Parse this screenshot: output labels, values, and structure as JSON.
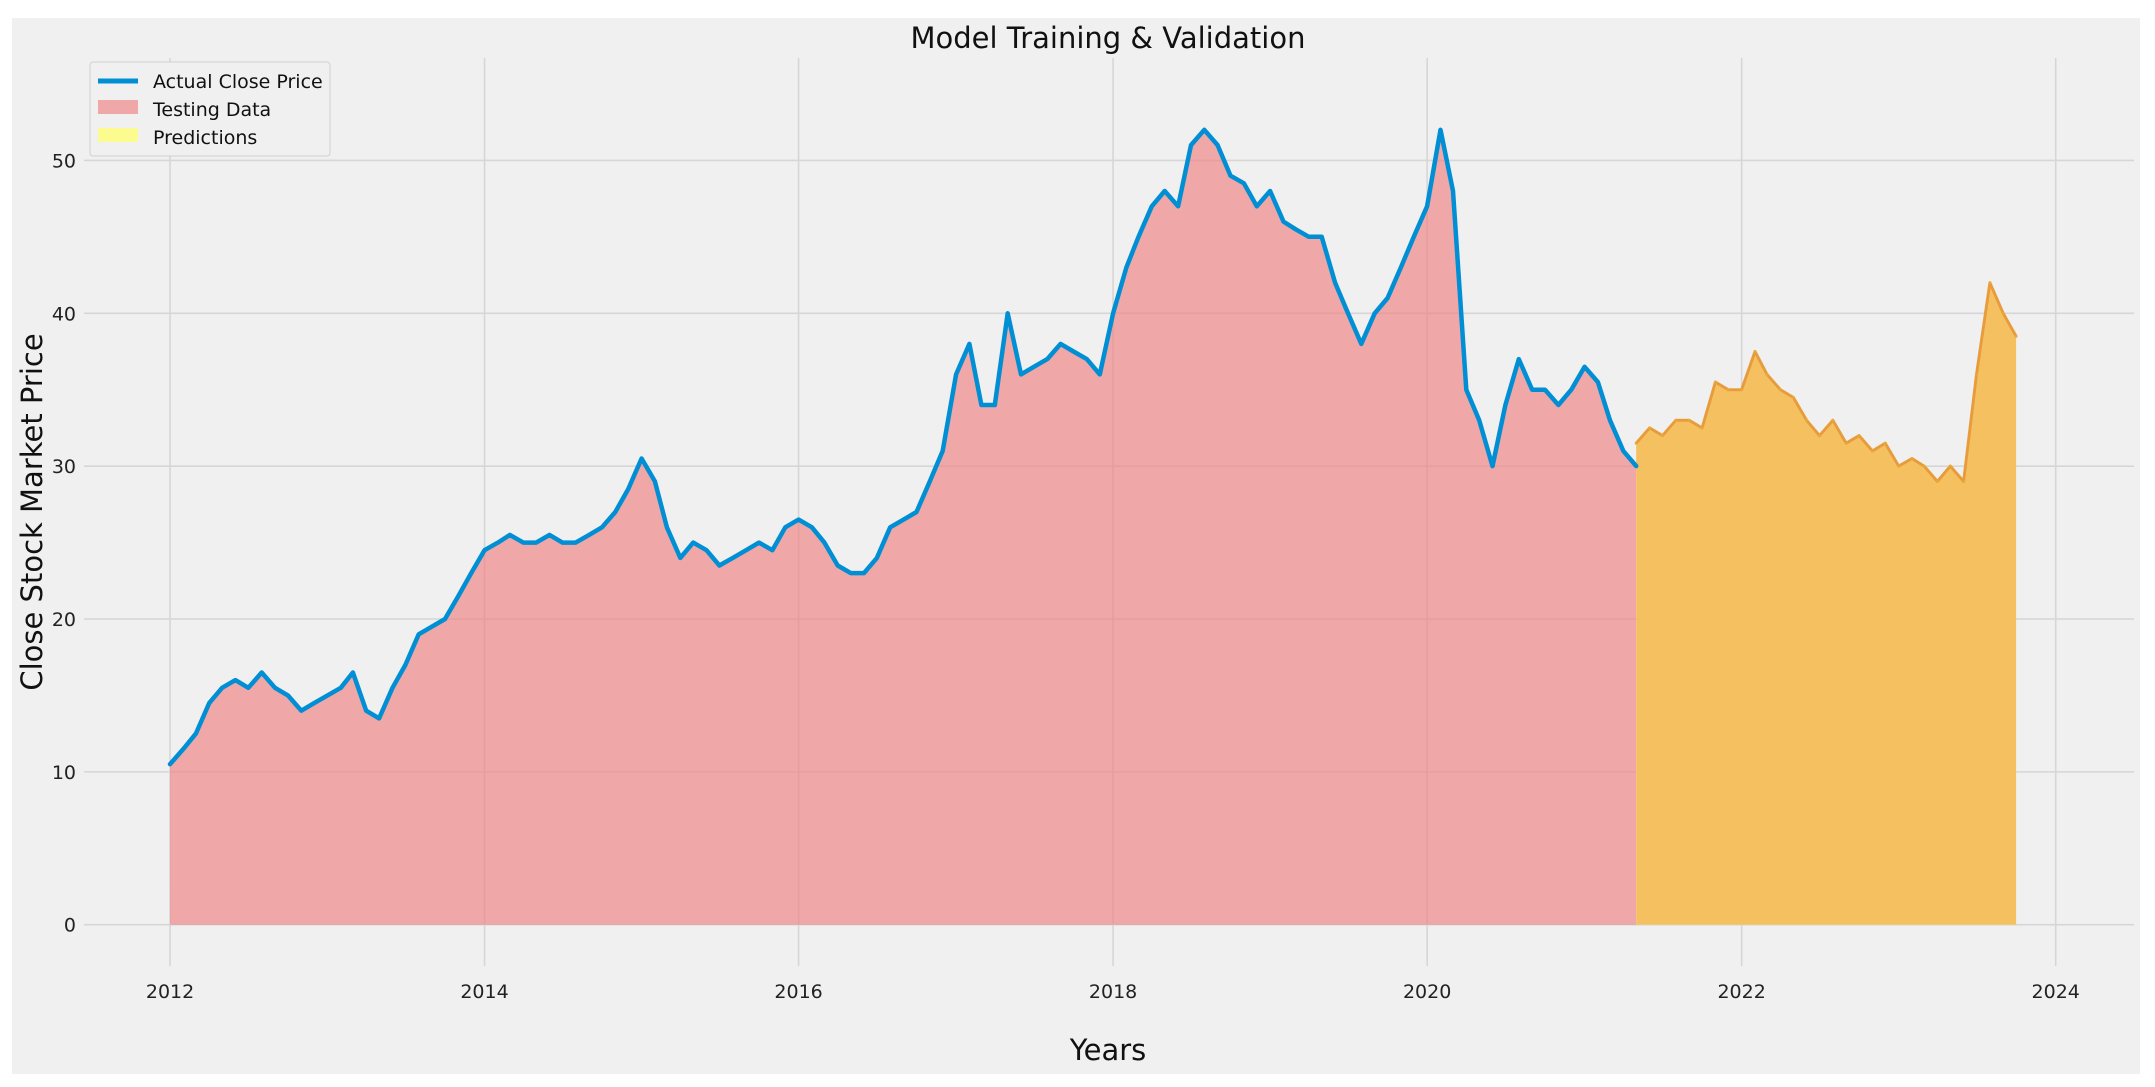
{
  "chart_data": {
    "type": "area",
    "title": "Model Training & Validation",
    "xlabel": "Years",
    "ylabel": "Close Stock Market Price",
    "xlim": [
      "2011-06-15",
      "2024-07-01"
    ],
    "ylim": [
      -2.7,
      56.7
    ],
    "x_ticks": [
      "2012",
      "2014",
      "2016",
      "2018",
      "2020",
      "2022",
      "2024"
    ],
    "y_ticks": [
      0,
      10,
      20,
      30,
      40,
      50
    ],
    "grid": true,
    "legend": {
      "placement": "top-left",
      "entries": [
        "Actual Close Price",
        "Testing Data",
        "Predictions"
      ]
    },
    "colors": {
      "background": "#f0f0f0",
      "grid": "#d6d6d6",
      "actual": "#008fd5",
      "testing": "#f08080",
      "testing_line": "#e05050",
      "predictions": "#ffff66",
      "prediction_overlay": "#f5c060"
    },
    "series": [
      {
        "name": "Actual Close Price",
        "role": "line",
        "x": [
          "2012-01-01",
          "2012-02-01",
          "2012-03-01",
          "2012-04-01",
          "2012-05-01",
          "2012-06-01",
          "2012-07-01",
          "2012-08-01",
          "2012-09-01",
          "2012-10-01",
          "2012-11-01",
          "2012-12-01",
          "2013-01-01",
          "2013-02-01",
          "2013-03-01",
          "2013-04-01",
          "2013-05-01",
          "2013-06-01",
          "2013-07-01",
          "2013-08-01",
          "2013-09-01",
          "2013-10-01",
          "2013-11-01",
          "2013-12-01",
          "2014-01-01",
          "2014-02-01",
          "2014-03-01",
          "2014-04-01",
          "2014-05-01",
          "2014-06-01",
          "2014-07-01",
          "2014-08-01",
          "2014-09-01",
          "2014-10-01",
          "2014-11-01",
          "2014-12-01",
          "2015-01-01",
          "2015-02-01",
          "2015-03-01",
          "2015-04-01",
          "2015-05-01",
          "2015-06-01",
          "2015-07-01",
          "2015-08-01",
          "2015-09-01",
          "2015-10-01",
          "2015-11-01",
          "2015-12-01",
          "2016-01-01",
          "2016-02-01",
          "2016-03-01",
          "2016-04-01",
          "2016-05-01",
          "2016-06-01",
          "2016-07-01",
          "2016-08-01",
          "2016-09-01",
          "2016-10-01",
          "2016-11-01",
          "2016-12-01",
          "2017-01-01",
          "2017-02-01",
          "2017-03-01",
          "2017-04-01",
          "2017-05-01",
          "2017-06-01",
          "2017-07-01",
          "2017-08-01",
          "2017-09-01",
          "2017-10-01",
          "2017-11-01",
          "2017-12-01",
          "2018-01-01",
          "2018-02-01",
          "2018-03-01",
          "2018-04-01",
          "2018-05-01",
          "2018-06-01",
          "2018-07-01",
          "2018-08-01",
          "2018-09-01",
          "2018-10-01",
          "2018-11-01",
          "2018-12-01",
          "2019-01-01",
          "2019-02-01",
          "2019-03-01",
          "2019-04-01",
          "2019-05-01",
          "2019-06-01",
          "2019-07-01",
          "2019-08-01",
          "2019-09-01",
          "2019-10-01",
          "2019-11-01",
          "2019-12-01",
          "2020-01-01",
          "2020-02-01",
          "2020-03-01",
          "2020-04-01",
          "2020-05-01",
          "2020-06-01",
          "2020-07-01",
          "2020-08-01",
          "2020-09-01",
          "2020-10-01",
          "2020-11-01",
          "2020-12-01",
          "2021-01-01",
          "2021-02-01",
          "2021-03-01",
          "2021-04-01",
          "2021-05-01"
        ],
        "y": [
          10.5,
          11.5,
          12.5,
          14.5,
          15.5,
          16.0,
          15.5,
          16.5,
          15.5,
          15.0,
          14.0,
          14.5,
          15.0,
          15.5,
          16.5,
          14.0,
          13.5,
          15.5,
          17.0,
          19.0,
          19.5,
          20.0,
          21.5,
          23.0,
          24.5,
          25.0,
          25.5,
          25.0,
          25.0,
          25.5,
          25.0,
          25.0,
          25.5,
          26.0,
          27.0,
          28.5,
          30.5,
          29.0,
          26.0,
          24.0,
          25.0,
          24.5,
          23.5,
          24.0,
          24.5,
          25.0,
          24.5,
          26.0,
          26.5,
          26.0,
          25.0,
          23.5,
          23.0,
          23.0,
          24.0,
          26.0,
          26.5,
          27.0,
          29.0,
          31.0,
          36.0,
          38.0,
          34.0,
          34.0,
          40.0,
          36.0,
          36.5,
          37.0,
          38.0,
          37.5,
          37.0,
          36.0,
          40.0,
          43.0,
          45.0,
          47.0,
          48.0,
          47.0,
          51.0,
          52.0,
          51.0,
          49.0,
          48.5,
          47.0,
          48.0,
          46.0,
          45.5,
          45.0,
          45.0,
          42.0,
          40.0,
          38.0,
          40.0,
          41.0,
          43.0,
          45.0,
          47.0,
          52.0,
          48.0,
          35.0,
          33.0,
          30.0,
          34.0,
          37.0,
          35.0,
          35.0,
          34.0,
          35.0,
          36.5,
          35.5,
          33.0,
          31.0,
          30.0
        ]
      },
      {
        "name": "Testing Data",
        "role": "fill",
        "start": "2012-01-01",
        "end": "2021-05-01"
      },
      {
        "name": "Predictions",
        "role": "fill",
        "x": [
          "2021-05-01",
          "2021-06-01",
          "2021-07-01",
          "2021-08-01",
          "2021-09-01",
          "2021-10-01",
          "2021-11-01",
          "2021-12-01",
          "2022-01-01",
          "2022-02-01",
          "2022-03-01",
          "2022-04-01",
          "2022-05-01",
          "2022-06-01",
          "2022-07-01",
          "2022-08-01",
          "2022-09-01",
          "2022-10-01",
          "2022-11-01",
          "2022-12-01",
          "2023-01-01",
          "2023-02-01",
          "2023-03-01",
          "2023-04-01",
          "2023-05-01",
          "2023-06-01",
          "2023-07-01",
          "2023-08-01",
          "2023-09-01",
          "2023-10-01"
        ],
        "y": [
          31.5,
          32.5,
          32.0,
          33.0,
          33.0,
          32.5,
          35.5,
          35.0,
          35.0,
          37.5,
          36.0,
          35.0,
          34.5,
          33.0,
          32.0,
          33.0,
          31.5,
          32.0,
          31.0,
          31.5,
          30.0,
          30.5,
          30.0,
          29.0,
          30.0,
          29.0,
          36.0,
          42.0,
          40.0,
          38.5
        ]
      }
    ]
  }
}
